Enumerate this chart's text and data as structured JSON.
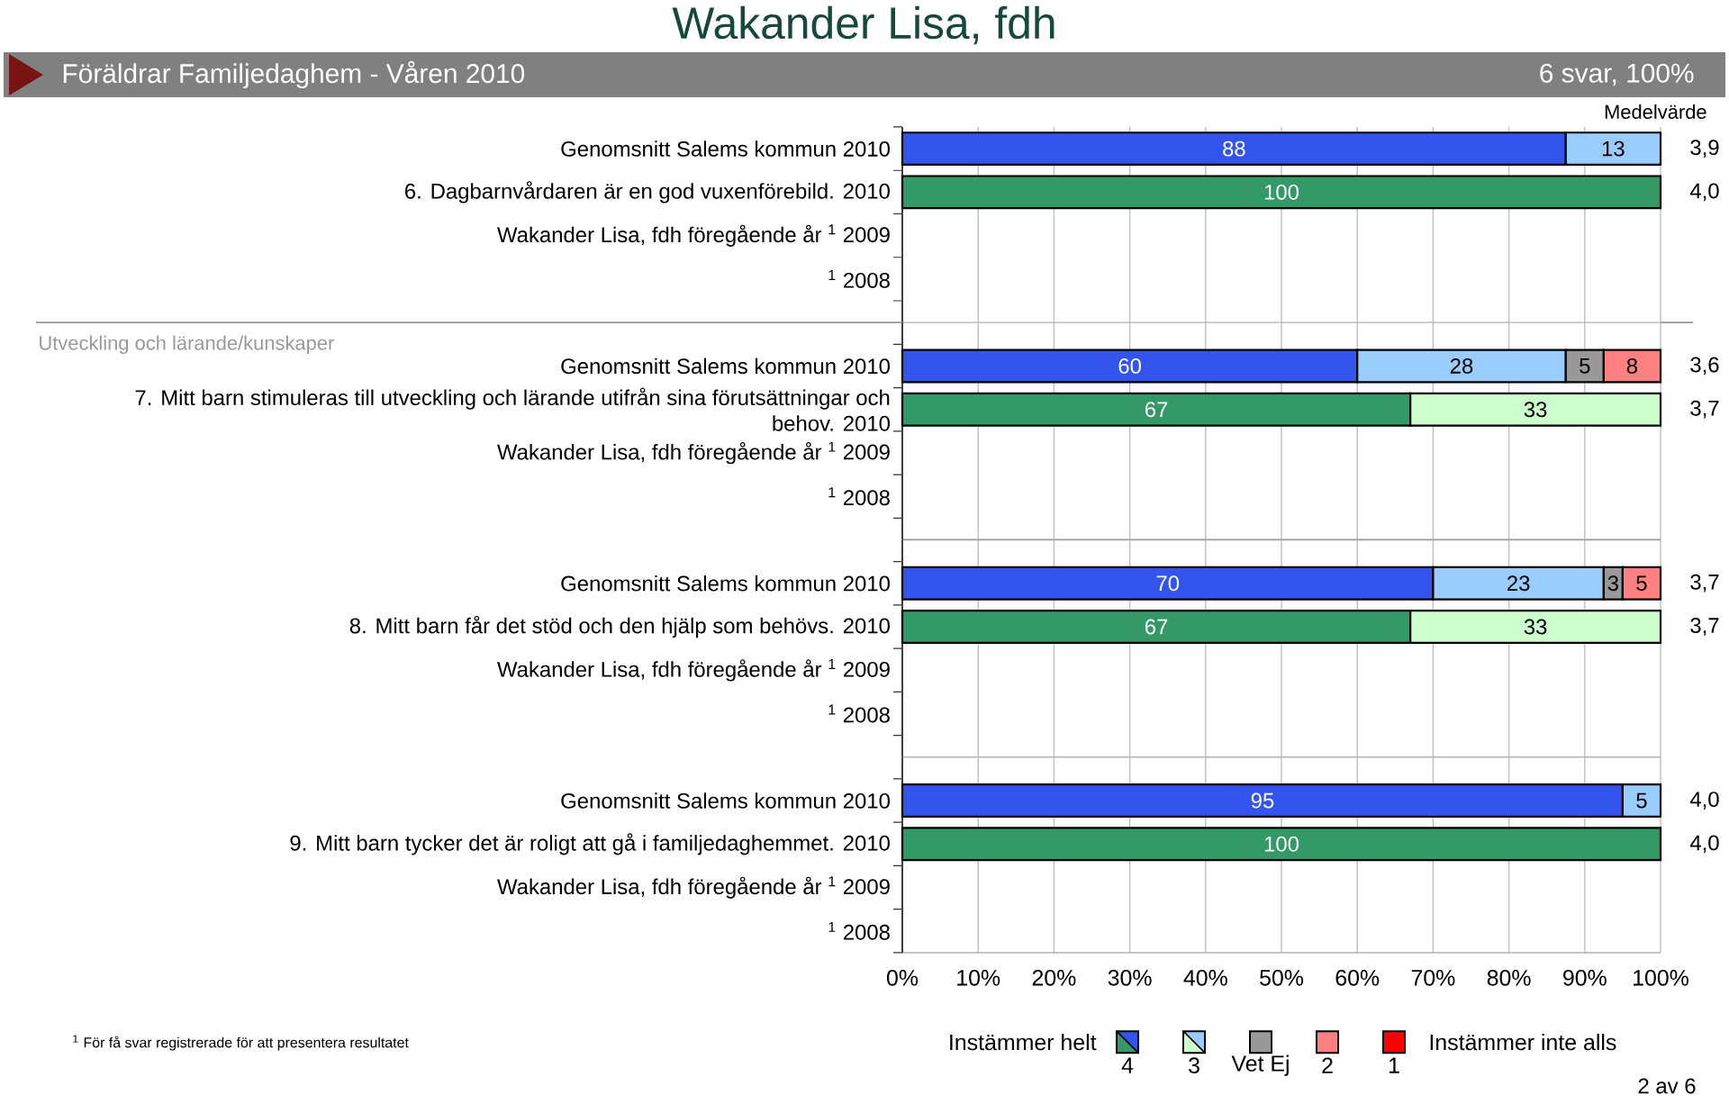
{
  "chart_data": [
    {
      "type": "bar",
      "orientation": "horizontal",
      "stacked": true,
      "title": "Wakander Lisa, fdh",
      "subtitle": "Föräldrar Familjedaghem - Våren 2010",
      "categories": [
        "Genomsnitt Salems kommun 2010",
        "6. Dagbarnvårdaren är en god vuxenförebild. 2010",
        "Wakander Lisa, fdh föregående år $^{1}$ 2009",
        "$^{1}$ 2008"
      ],
      "series": [
        {
          "values": [
            87.5,
            100,
            null,
            null
          ],
          "colors": [
            "#3355ee",
            "#339966",
            null,
            null
          ],
          "value_labels": [
            "88",
            "100",
            null,
            null
          ]
        },
        {
          "values": [
            12.5,
            null,
            null,
            null
          ],
          "colors": [
            "#99ccff",
            null,
            null,
            null
          ],
          "value_labels": [
            "13",
            null,
            null,
            null
          ]
        }
      ],
      "xlim": [
        0,
        100
      ],
      "xticks": [
        {
          "value": 0,
          "label": null
        },
        {
          "value": 10,
          "label": null
        },
        {
          "value": 20,
          "label": null
        },
        {
          "value": 30,
          "label": null
        },
        {
          "value": 40,
          "label": null
        },
        {
          "value": 50,
          "label": null
        },
        {
          "value": 60,
          "label": null
        },
        {
          "value": 70,
          "label": null
        },
        {
          "value": 80,
          "label": null
        },
        {
          "value": 90,
          "label": null
        },
        {
          "value": 100,
          "label": null
        }
      ],
      "grid": "x",
      "tick_labels": "y",
      "annotations": [
        "6 svar, 100%",
        "Medelvärde",
        "3,9",
        "4,0"
      ]
    },
    {
      "type": "bar",
      "orientation": "horizontal",
      "stacked": true,
      "title": "Utveckling och lärande/kunskaper",
      "categories": [
        "Genomsnitt Salems kommun 2010",
        "7. Mitt barn stimuleras till utveckling och lärande utifrån sina förutsättningar och behov. 2010",
        "Wakander Lisa, fdh föregående år $^{1}$ 2009",
        "$^{1}$ 2008"
      ],
      "series": [
        {
          "values": [
            60,
            67,
            null,
            null
          ],
          "colors": [
            "#3355ee",
            "#339966",
            null,
            null
          ],
          "value_labels": [
            "60",
            "67",
            null,
            null
          ]
        },
        {
          "values": [
            27.5,
            33,
            null,
            null
          ],
          "colors": [
            "#99ccff",
            "#ccffcc",
            null,
            null
          ],
          "value_labels": [
            "28",
            "33",
            null,
            null
          ]
        },
        {
          "color": "#999999",
          "values": [
            5,
            null,
            null,
            null
          ],
          "value_labels": [
            "5",
            null,
            null,
            null
          ]
        },
        {
          "color": "#ff8080",
          "values": [
            7.5,
            null,
            null,
            null
          ],
          "value_labels": [
            "8",
            null,
            null,
            null
          ]
        }
      ],
      "xlim": [
        0,
        100
      ],
      "xticks": [
        {
          "value": 0,
          "label": null
        },
        {
          "value": 10,
          "label": null
        },
        {
          "value": 20,
          "label": null
        },
        {
          "value": 30,
          "label": null
        },
        {
          "value": 40,
          "label": null
        },
        {
          "value": 50,
          "label": null
        },
        {
          "value": 60,
          "label": null
        },
        {
          "value": 70,
          "label": null
        },
        {
          "value": 80,
          "label": null
        },
        {
          "value": 90,
          "label": null
        },
        {
          "value": 100,
          "label": null
        }
      ],
      "grid": "x",
      "tick_labels": "y",
      "annotations": [
        "3,6",
        "3,7"
      ]
    },
    {
      "type": "bar",
      "orientation": "horizontal",
      "stacked": true,
      "categories": [
        "Genomsnitt Salems kommun 2010",
        "8. Mitt barn får det stöd och den hjälp som behövs. 2010",
        "Wakander Lisa, fdh föregående år $^{1}$ 2009",
        "$^{1}$ 2008"
      ],
      "series": [
        {
          "values": [
            70,
            67,
            null,
            null
          ],
          "colors": [
            "#3355ee",
            "#339966",
            null,
            null
          ],
          "value_labels": [
            "70",
            "67",
            null,
            null
          ]
        },
        {
          "values": [
            22.5,
            33,
            null,
            null
          ],
          "colors": [
            "#99ccff",
            "#ccffcc",
            null,
            null
          ],
          "value_labels": [
            "23",
            "33",
            null,
            null
          ]
        },
        {
          "color": "#999999",
          "values": [
            2.5,
            null,
            null,
            null
          ],
          "value_labels": [
            "3",
            null,
            null,
            null
          ]
        },
        {
          "color": "#ff8080",
          "values": [
            5,
            null,
            null,
            null
          ],
          "value_labels": [
            "5",
            null,
            null,
            null
          ]
        }
      ],
      "xlim": [
        0,
        100
      ],
      "xticks": [
        {
          "value": 0,
          "label": null
        },
        {
          "value": 10,
          "label": null
        },
        {
          "value": 20,
          "label": null
        },
        {
          "value": 30,
          "label": null
        },
        {
          "value": 40,
          "label": null
        },
        {
          "value": 50,
          "label": null
        },
        {
          "value": 60,
          "label": null
        },
        {
          "value": 70,
          "label": null
        },
        {
          "value": 80,
          "label": null
        },
        {
          "value": 90,
          "label": null
        },
        {
          "value": 100,
          "label": null
        }
      ],
      "grid": "x",
      "tick_labels": "y",
      "annotations": [
        "3,7",
        "3,7"
      ]
    },
    {
      "type": "bar",
      "orientation": "horizontal",
      "stacked": true,
      "categories": [
        "Genomsnitt Salems kommun 2010",
        "9. Mitt barn tycker det är roligt att gå i familjedaghemmet. 2010",
        "Wakander Lisa, fdh föregående år $^{1}$ 2009",
        "$^{1}$ 2008"
      ],
      "series": [
        {
          "name": "4",
          "values": [
            95,
            100,
            null,
            null
          ],
          "colors": [
            "#3355ee",
            "#339966",
            null,
            null
          ],
          "value_labels": [
            "95",
            "100",
            null,
            null
          ]
        },
        {
          "name": "3",
          "values": [
            5,
            null,
            null,
            null
          ],
          "colors": [
            "#99ccff",
            null,
            null,
            null
          ],
          "value_labels": [
            "5",
            null,
            null,
            null
          ]
        },
        {
          "name": "Vet Ej",
          "color": "#999999",
          "values": [
            null,
            null,
            null,
            null
          ]
        },
        {
          "name": "2",
          "color": "#ff8080",
          "values": [
            null,
            null,
            null,
            null
          ]
        },
        {
          "name": "1",
          "color": "#ff0000",
          "values": [
            null,
            null,
            null,
            null
          ]
        }
      ],
      "xlim": [
        0,
        100
      ],
      "xticks": [
        {
          "value": 0,
          "label": "0%"
        },
        {
          "value": 10,
          "label": "10%"
        },
        {
          "value": 20,
          "label": "20%"
        },
        {
          "value": 30,
          "label": "30%"
        },
        {
          "value": 40,
          "label": "40%"
        },
        {
          "value": 50,
          "label": "50%"
        },
        {
          "value": 60,
          "label": "60%"
        },
        {
          "value": 70,
          "label": "70%"
        },
        {
          "value": 80,
          "label": "80%"
        },
        {
          "value": 90,
          "label": "90%"
        },
        {
          "value": 100,
          "label": "100%"
        }
      ],
      "grid": "x",
      "legend": "bottom",
      "annotations": [
        "4,0",
        "4,0",
        "Instämmer helt",
        "Instämmer inte alls",
        "$^{1}$ För få svar registrerade för att presentera resultatet",
        "2 av 6"
      ]
    }
  ]
}
